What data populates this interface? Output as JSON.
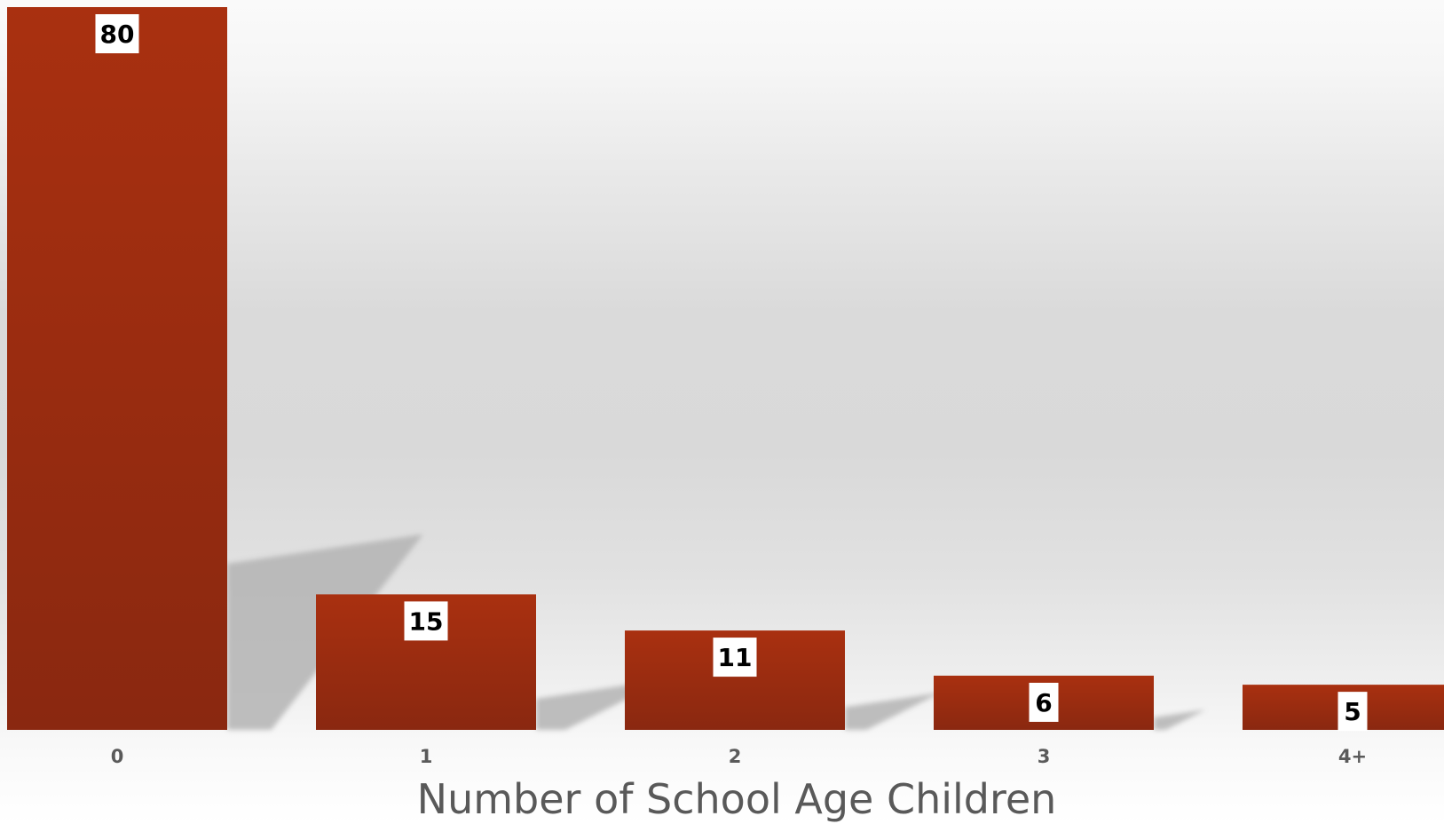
{
  "chart_data": {
    "type": "bar",
    "categories": [
      "0",
      "1",
      "2",
      "3",
      "4+"
    ],
    "values": [
      80,
      15,
      11,
      6,
      5
    ],
    "title": "",
    "xlabel": "Number of School Age Children",
    "ylabel": "",
    "ylim": [
      0,
      80
    ],
    "grid": false,
    "legend": "none",
    "data_labels": true
  },
  "colors": {
    "bar_top": "#a93010",
    "bar_bottom": "#8a2810",
    "label_box": "#ffffff",
    "shadow": "#b4b4b4"
  }
}
